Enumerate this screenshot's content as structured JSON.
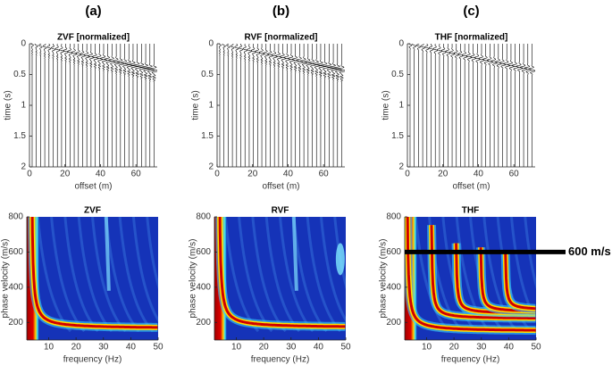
{
  "chart_data": [
    {
      "type": "seismogram",
      "panel_label": "(a)",
      "title": "ZVF [normalized]",
      "xlabel": "offset (m)",
      "ylabel": "time (s)",
      "xlim": [
        0,
        72
      ],
      "ylim": [
        0,
        2
      ],
      "yreverse": true,
      "xticks": [
        0,
        20,
        40,
        60
      ],
      "yticks": [
        0,
        0.5,
        1,
        1.5,
        2
      ]
    },
    {
      "type": "seismogram",
      "panel_label": "(b)",
      "title": "RVF [normalized]",
      "xlabel": "offset (m)",
      "ylabel": "time (s)",
      "xlim": [
        0,
        72
      ],
      "ylim": [
        0,
        2
      ],
      "yreverse": true,
      "xticks": [
        0,
        20,
        40,
        60
      ],
      "yticks": [
        0,
        0.5,
        1,
        1.5,
        2
      ]
    },
    {
      "type": "seismogram",
      "panel_label": "(c)",
      "title": "THF [normalized]",
      "xlabel": "offset (m)",
      "ylabel": "time (s)",
      "xlim": [
        0,
        72
      ],
      "ylim": [
        0,
        2
      ],
      "yreverse": true,
      "xticks": [
        0,
        20,
        40,
        60
      ],
      "yticks": [
        0,
        0.5,
        1,
        1.5,
        2
      ]
    },
    {
      "type": "dispersion",
      "title": "ZVF",
      "xlabel": "frequency (Hz)",
      "ylabel": "phase velocity (m/s)",
      "xlim": [
        2,
        50
      ],
      "ylim": [
        100,
        800
      ],
      "xticks": [
        10,
        20,
        30,
        40,
        50
      ],
      "yticks": [
        200,
        400,
        600,
        800
      ]
    },
    {
      "type": "dispersion",
      "title": "RVF",
      "xlabel": "frequency (Hz)",
      "ylabel": "phase velocity (m/s)",
      "xlim": [
        2,
        50
      ],
      "ylim": [
        100,
        800
      ],
      "xticks": [
        10,
        20,
        30,
        40,
        50
      ],
      "yticks": [
        200,
        400,
        600,
        800
      ]
    },
    {
      "type": "dispersion",
      "title": "THF",
      "xlabel": "frequency (Hz)",
      "ylabel": "phase velocity (m/s)",
      "xlim": [
        2,
        50
      ],
      "ylim": [
        100,
        800
      ],
      "xticks": [
        10,
        20,
        30,
        40,
        50
      ],
      "yticks": [
        200,
        400,
        600,
        800
      ],
      "annotations": [
        {
          "text": "600 m/s",
          "y": 600
        }
      ]
    }
  ]
}
